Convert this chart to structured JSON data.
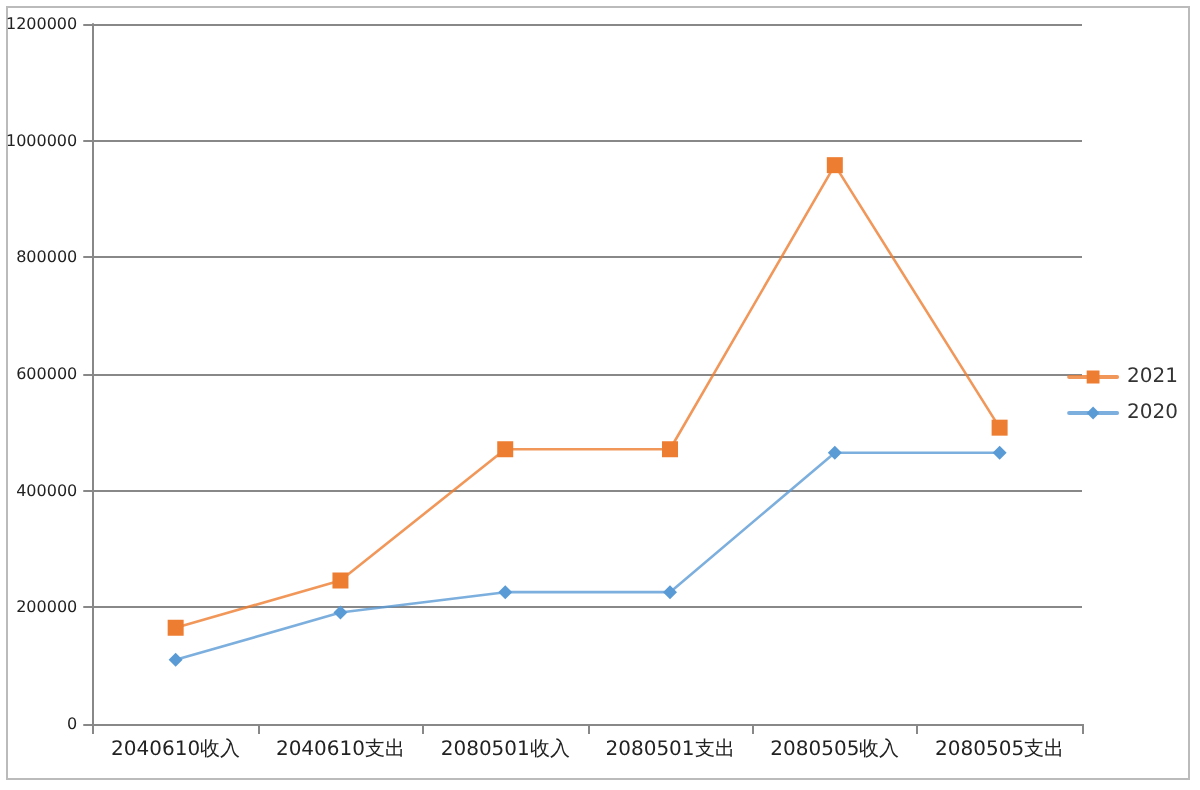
{
  "chart_data": {
    "type": "line",
    "categories": [
      "2040610收入",
      "2040610支出",
      "2080501收入",
      "2080501支出",
      "2080505收入",
      "2080505支出"
    ],
    "series": [
      {
        "name": "2021",
        "color": "#ed7d31",
        "marker": "square",
        "values": [
          165000,
          246000,
          471000,
          471000,
          958000,
          508000
        ]
      },
      {
        "name": "2020",
        "color": "#5b9bd5",
        "marker": "diamond",
        "values": [
          110000,
          191000,
          226000,
          226000,
          465000,
          465000
        ]
      }
    ],
    "ylim": [
      0,
      1200000
    ],
    "yticks": [
      0,
      200000,
      400000,
      600000,
      800000,
      1000000,
      1200000
    ],
    "grid": "y",
    "legend": "right",
    "line_style": "solid"
  }
}
